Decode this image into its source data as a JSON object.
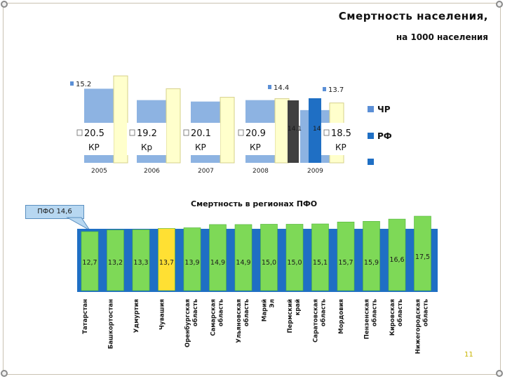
{
  "header": {
    "title": "Смертность населения,",
    "subtitle": "на 1000 населения"
  },
  "page_number": "11",
  "pfo_callout": "ПФО 14,6",
  "chart_data": [
    {
      "type": "bar",
      "title": "",
      "years": [
        "2005",
        "2006",
        "2007",
        "2008",
        "2009"
      ],
      "series": [
        {
          "name": "ЧР",
          "values": [
            15.2,
            14.4,
            14.3,
            14.4,
            13.7
          ],
          "labels": [
            "15.2",
            "",
            "",
            "14.4",
            "13.7"
          ],
          "color": "#8db3e2"
        },
        {
          "name": "РФ",
          "values": [
            16.1,
            15.2,
            14.6,
            14.5,
            14.2
          ],
          "labels": [
            "",
            "",
            "",
            "",
            ""
          ],
          "color": "#ffffcc"
        }
      ],
      "extra_2009_labels": [
        "14.1",
        "14.1"
      ],
      "kr_labels": [
        {
          "value": "20.5",
          "suffix": "КР"
        },
        {
          "value": "19.2",
          "suffix": "Кр"
        },
        {
          "value": "20.1",
          "suffix": "КР"
        },
        {
          "value": "20.9",
          "suffix": "КР"
        },
        {
          "value": "18.5",
          "suffix": "КР"
        }
      ],
      "legend": [
        "ЧР",
        "РФ"
      ]
    },
    {
      "type": "bar",
      "title": "Смертность в регионах ПФО",
      "categories": [
        "Татарстан",
        "Башкортостан",
        "Удмуртия",
        "Чувашия",
        "Оренбургская область",
        "Самарская область",
        "Ульяновская область",
        "Марий Эл",
        "Пермский край",
        "Саратовская область",
        "Мордовия",
        "Пензенская область",
        "Кировская область",
        "Нижегородская область"
      ],
      "values": [
        12.7,
        13.2,
        13.3,
        13.7,
        13.9,
        14.9,
        14.9,
        15.0,
        15.0,
        15.1,
        15.7,
        15.9,
        16.6,
        17.5
      ],
      "value_labels": [
        "12,7",
        "13,2",
        "13,3",
        "13,7",
        "13,9",
        "14,9",
        "14,9",
        "15,0",
        "15,0",
        "15,1",
        "15,7",
        "15,9",
        "16,6",
        "17,5"
      ],
      "highlight": "Чувашия",
      "colors": {
        "bar": "#7ed957",
        "highlight": "#ffe033",
        "background": "#1f6fc4"
      }
    }
  ]
}
